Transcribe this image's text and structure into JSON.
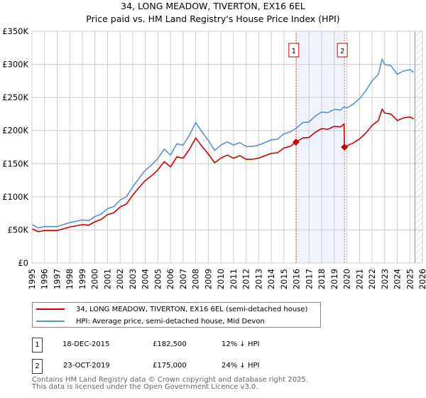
{
  "chart_data": {
    "type": "line",
    "title": "34, LONG MEADOW, TIVERTON, EX16 6EL",
    "subtitle": "Price paid vs. HM Land Registry's House Price Index (HPI)",
    "xlim": [
      1995,
      2026
    ],
    "ylim": [
      0,
      350000
    ],
    "y_ticks": [
      {
        "v": 0,
        "label": "£0"
      },
      {
        "v": 50000,
        "label": "£50K"
      },
      {
        "v": 100000,
        "label": "£100K"
      },
      {
        "v": 150000,
        "label": "£150K"
      },
      {
        "v": 200000,
        "label": "£200K"
      },
      {
        "v": 250000,
        "label": "£250K"
      },
      {
        "v": 300000,
        "label": "£300K"
      },
      {
        "v": 350000,
        "label": "£350K"
      }
    ],
    "x_ticks": [
      "1995",
      "1996",
      "1997",
      "1998",
      "1999",
      "2000",
      "2001",
      "2002",
      "2003",
      "2004",
      "2005",
      "2006",
      "2007",
      "2008",
      "2009",
      "2010",
      "2011",
      "2012",
      "2013",
      "2014",
      "2015",
      "2016",
      "2017",
      "2018",
      "2019",
      "2020",
      "2021",
      "2022",
      "2023",
      "2024",
      "2025",
      "2026"
    ],
    "grid": true,
    "series": [
      {
        "name": "34, LONG MEADOW, TIVERTON, EX16 6EL (semi-detached house)",
        "color": "#cc0000",
        "x": [
          1995,
          1995.5,
          1996,
          1997,
          1997.5,
          1998,
          1999,
          1999.5,
          2000,
          2000.5,
          2001,
          2001.5,
          2002,
          2002.5,
          2003,
          2003.5,
          2004,
          2004.5,
          2005,
          2005.5,
          2006,
          2006.5,
          2007,
          2007.5,
          2008,
          2008.5,
          2009,
          2009.5,
          2010,
          2010.5,
          2011,
          2011.5,
          2012,
          2012.5,
          2013,
          2013.5,
          2014,
          2014.5,
          2015,
          2015.5,
          2015.96,
          2016.5,
          2017,
          2017.5,
          2018,
          2018.5,
          2019,
          2019.5,
          2019.78,
          2019.81,
          2020,
          2020.5,
          2021,
          2021.5,
          2022,
          2022.5,
          2022.8,
          2023,
          2023.5,
          2024,
          2024.5,
          2025,
          2025.3
        ],
        "y": [
          51600,
          47200,
          49000,
          49000,
          51600,
          54300,
          57900,
          57000,
          62300,
          65900,
          73000,
          75700,
          84600,
          89000,
          102400,
          113900,
          124600,
          131700,
          140600,
          153100,
          145100,
          160200,
          158400,
          171800,
          188700,
          176200,
          164700,
          151300,
          158400,
          162900,
          158400,
          162000,
          156600,
          156600,
          158400,
          162000,
          165500,
          166400,
          173600,
          176200,
          182500,
          188700,
          189600,
          197600,
          202900,
          202000,
          206500,
          205600,
          210000,
          175000,
          176700,
          181200,
          187200,
          196300,
          207600,
          215200,
          232500,
          226500,
          225000,
          215200,
          219000,
          220500,
          217400
        ]
      },
      {
        "name": "HPI: Average price, semi-detached house, Mid Devon",
        "color": "#5b8fd4",
        "x": [
          1995,
          1995.5,
          1996,
          1997,
          1997.5,
          1998,
          1999,
          1999.5,
          2000,
          2000.5,
          2001,
          2001.5,
          2002,
          2002.5,
          2003,
          2003.5,
          2004,
          2004.5,
          2005,
          2005.5,
          2006,
          2006.5,
          2007,
          2007.5,
          2008,
          2008.5,
          2009,
          2009.5,
          2010,
          2010.5,
          2011,
          2011.5,
          2012,
          2012.5,
          2013,
          2013.5,
          2014,
          2014.5,
          2015,
          2015.5,
          2016,
          2016.5,
          2017,
          2017.5,
          2018,
          2018.5,
          2019,
          2019.5,
          2019.8,
          2020,
          2020.5,
          2021,
          2021.5,
          2022,
          2022.5,
          2022.8,
          2023,
          2023.5,
          2024,
          2024.5,
          2025,
          2025.3
        ],
        "y": [
          58000,
          53000,
          55000,
          55000,
          58000,
          61000,
          65000,
          64000,
          70000,
          74000,
          82000,
          85000,
          95000,
          100000,
          115000,
          128000,
          140000,
          148000,
          158000,
          172000,
          163000,
          180000,
          178000,
          193000,
          212000,
          198000,
          185000,
          170000,
          178000,
          183000,
          178000,
          182000,
          176000,
          176000,
          178000,
          182000,
          186000,
          187000,
          195000,
          198000,
          204000,
          212000,
          213000,
          222000,
          228000,
          227000,
          232000,
          231000,
          236000,
          234000,
          240000,
          248000,
          260000,
          275000,
          285000,
          308000,
          300000,
          298000,
          285000,
          290000,
          292000,
          288000
        ]
      }
    ],
    "annotations": [
      {
        "label": "1",
        "x": 2015.96,
        "y": 182500
      },
      {
        "label": "2",
        "x": 2019.81,
        "y": 175000
      }
    ],
    "shaded_range": [
      2015.96,
      2019.81
    ],
    "forecast_hatch_from": 2025.4,
    "legend_position": "bottom"
  },
  "legend": [
    {
      "label": "34, LONG MEADOW, TIVERTON, EX16 6EL (semi-detached house)",
      "color": "#cc0000"
    },
    {
      "label": "HPI: Average price, semi-detached house, Mid Devon",
      "color": "#5b8fd4"
    }
  ],
  "sales": [
    {
      "num": "1",
      "date": "18-DEC-2015",
      "price": "£182,500",
      "hpi": "12% ↓ HPI"
    },
    {
      "num": "2",
      "date": "23-OCT-2019",
      "price": "£175,000",
      "hpi": "24% ↓ HPI"
    }
  ],
  "footer": {
    "line1": "Contains HM Land Registry data © Crown copyright and database right 2025.",
    "line2": "This data is licensed under the Open Government Licence v3.0."
  }
}
